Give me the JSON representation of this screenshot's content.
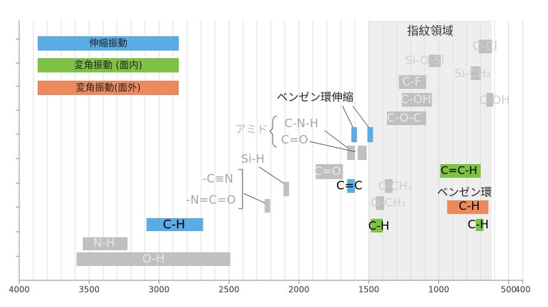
{
  "chart_data": {
    "type": "range-bar",
    "xlim": [
      4000,
      400
    ],
    "xticks": [
      4000,
      3500,
      3000,
      2500,
      2000,
      1500,
      1000,
      500,
      400
    ],
    "grid": true,
    "region": {
      "label": "指紋領域",
      "range": [
        1500,
        620
      ],
      "color": "#eeeeee"
    },
    "legend": [
      {
        "name": "伸縮振動",
        "color": "#5aade4"
      },
      {
        "name": "変角振動 (面内)",
        "color": "#7dc242"
      },
      {
        "name": "変角振動(面外)",
        "color": "#ec8a5e"
      }
    ],
    "annotations": [
      "ベンゼン環伸縮",
      "アミド",
      "ベンゼン環"
    ],
    "bars": [
      {
        "labels": [
          "C-Cl"
        ],
        "range": [
          715,
          620
        ],
        "color": "#c0c0c0"
      },
      {
        "labels": [
          "Si-O-Si"
        ],
        "range": [
          1070,
          985
        ],
        "color": "#c0c0c0"
      },
      {
        "labels": [
          "Si-CH₃"
        ],
        "range": [
          770,
          700
        ],
        "color": "#c0c0c0"
      },
      {
        "labels": [
          "C-F"
        ],
        "range": [
          1285,
          1090
        ],
        "color": "#c0c0c0"
      },
      {
        "labels": [
          "C-OH"
        ],
        "range": [
          1265,
          1050
        ],
        "color": "#c0c0c0"
      },
      {
        "labels": [
          "C-OH"
        ],
        "range": [
          660,
          610
        ],
        "color": "#c0c0c0"
      },
      {
        "labels": [
          "C-O-C"
        ],
        "range": [
          1370,
          1090
        ],
        "color": "#c0c0c0"
      },
      {
        "range": [
          1625,
          1585
        ],
        "color": "#5aade4"
      },
      {
        "range": [
          1510,
          1470
        ],
        "color": "#5aade4"
      },
      {
        "labels": [
          "C-N-H"
        ],
        "range": [
          1655,
          1600
        ],
        "color": "#c0c0c0"
      },
      {
        "labels": [
          "C=O"
        ],
        "range": [
          1580,
          1515
        ],
        "color": "#c0c0c0"
      },
      {
        "labels": [
          "C=O"
        ],
        "range": [
          1880,
          1685
        ],
        "color": "#c0c0c0"
      },
      {
        "labels": [
          "Si-H"
        ],
        "range": [
          2110,
          2070
        ],
        "color": "#c0c0c0"
      },
      {
        "labels": [
          "C=C"
        ],
        "range": [
          1655,
          1600
        ],
        "color": "#5aade4"
      },
      {
        "labels": [
          "C-CH₃"
        ],
        "range": [
          1385,
          1330
        ],
        "color": "#c0c0c0"
      },
      {
        "labels": [
          "-C≡N",
          "-N=C=O"
        ],
        "range": [
          2245,
          2205
        ],
        "color": "#c0c0c0"
      },
      {
        "labels": [
          "O-CH₃"
        ],
        "range": [
          1450,
          1390
        ],
        "color": "#c0c0c0"
      },
      {
        "labels": [
          "C=C-H"
        ],
        "range": [
          990,
          700
        ],
        "color": "#7dc242"
      },
      {
        "labels": [
          "C-H"
        ],
        "range": [
          940,
          645
        ],
        "color": "#ec8a5e"
      },
      {
        "labels": [
          "C-H"
        ],
        "range": [
          1485,
          1400
        ],
        "color": "#7dc242"
      },
      {
        "labels": [
          "C-H"
        ],
        "range": [
          735,
          680
        ],
        "color": "#7dc242"
      },
      {
        "labels": [
          "C-H"
        ],
        "range": [
          3090,
          2685
        ],
        "color": "#5aade4"
      },
      {
        "labels": [
          "N-H"
        ],
        "range": [
          3545,
          3225
        ],
        "color": "#c0c0c0"
      },
      {
        "labels": [
          "O-H"
        ],
        "range": [
          3590,
          2490
        ],
        "color": "#c0c0c0"
      }
    ]
  }
}
